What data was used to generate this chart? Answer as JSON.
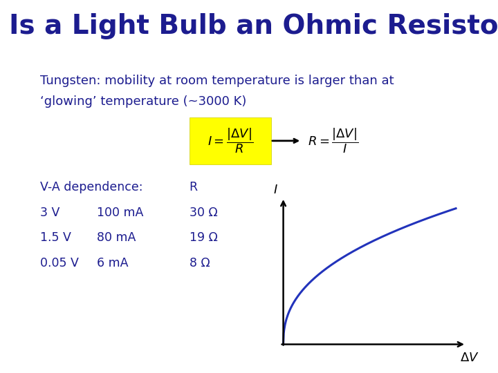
{
  "title": "Is a Light Bulb an Ohmic Resistor?",
  "title_color": "#1c1c8f",
  "title_fontsize": 28,
  "background_color": "#ffffff",
  "subtitle_line1": "Tungsten: mobility at room temperature is larger than at",
  "subtitle_line2": "‘glowing’ temperature (~3000 K)",
  "subtitle_color": "#1c1c8f",
  "subtitle_fontsize": 13,
  "table_header_col1": "V-A dependence:",
  "table_header_col3": "R",
  "table_data": [
    [
      "3 V",
      "100 mA",
      "30 Ω"
    ],
    [
      "1.5 V",
      "80 mA",
      "19 Ω"
    ],
    [
      "0.05 V",
      "6 mA",
      "8 Ω"
    ]
  ],
  "table_color": "#1c1c8f",
  "table_fontsize": 12.5,
  "formula_box_color": "#ffff00",
  "curve_color": "#2233bb",
  "axis_color": "#000000",
  "curve_power": 0.42
}
